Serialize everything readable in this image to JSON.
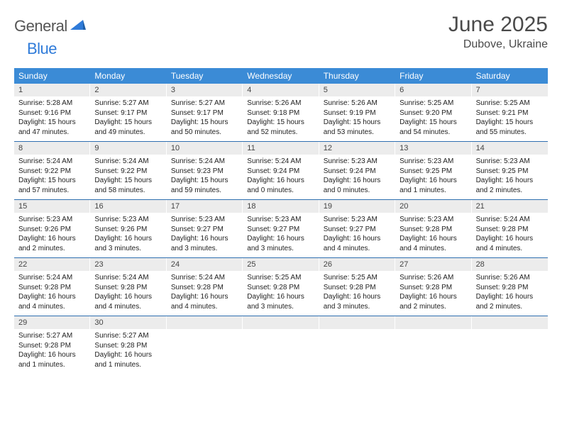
{
  "brand": {
    "word1": "General",
    "word2": "Blue"
  },
  "title": "June 2025",
  "location": "Dubove, Ukraine",
  "colors": {
    "header_bg": "#3b8bd6",
    "week_border": "#2f6fb0",
    "daynum_bg": "#ececec",
    "brand_blue": "#2f7bd9",
    "text": "#333333"
  },
  "weekdays": [
    "Sunday",
    "Monday",
    "Tuesday",
    "Wednesday",
    "Thursday",
    "Friday",
    "Saturday"
  ],
  "weeks": [
    [
      {
        "n": "1",
        "sunrise": "5:28 AM",
        "sunset": "9:16 PM",
        "dl_h": "15",
        "dl_m": "47"
      },
      {
        "n": "2",
        "sunrise": "5:27 AM",
        "sunset": "9:17 PM",
        "dl_h": "15",
        "dl_m": "49"
      },
      {
        "n": "3",
        "sunrise": "5:27 AM",
        "sunset": "9:17 PM",
        "dl_h": "15",
        "dl_m": "50"
      },
      {
        "n": "4",
        "sunrise": "5:26 AM",
        "sunset": "9:18 PM",
        "dl_h": "15",
        "dl_m": "52"
      },
      {
        "n": "5",
        "sunrise": "5:26 AM",
        "sunset": "9:19 PM",
        "dl_h": "15",
        "dl_m": "53"
      },
      {
        "n": "6",
        "sunrise": "5:25 AM",
        "sunset": "9:20 PM",
        "dl_h": "15",
        "dl_m": "54"
      },
      {
        "n": "7",
        "sunrise": "5:25 AM",
        "sunset": "9:21 PM",
        "dl_h": "15",
        "dl_m": "55"
      }
    ],
    [
      {
        "n": "8",
        "sunrise": "5:24 AM",
        "sunset": "9:22 PM",
        "dl_h": "15",
        "dl_m": "57"
      },
      {
        "n": "9",
        "sunrise": "5:24 AM",
        "sunset": "9:22 PM",
        "dl_h": "15",
        "dl_m": "58"
      },
      {
        "n": "10",
        "sunrise": "5:24 AM",
        "sunset": "9:23 PM",
        "dl_h": "15",
        "dl_m": "59"
      },
      {
        "n": "11",
        "sunrise": "5:24 AM",
        "sunset": "9:24 PM",
        "dl_h": "16",
        "dl_m": "0"
      },
      {
        "n": "12",
        "sunrise": "5:23 AM",
        "sunset": "9:24 PM",
        "dl_h": "16",
        "dl_m": "0"
      },
      {
        "n": "13",
        "sunrise": "5:23 AM",
        "sunset": "9:25 PM",
        "dl_h": "16",
        "dl_m": "1"
      },
      {
        "n": "14",
        "sunrise": "5:23 AM",
        "sunset": "9:25 PM",
        "dl_h": "16",
        "dl_m": "2"
      }
    ],
    [
      {
        "n": "15",
        "sunrise": "5:23 AM",
        "sunset": "9:26 PM",
        "dl_h": "16",
        "dl_m": "2"
      },
      {
        "n": "16",
        "sunrise": "5:23 AM",
        "sunset": "9:26 PM",
        "dl_h": "16",
        "dl_m": "3"
      },
      {
        "n": "17",
        "sunrise": "5:23 AM",
        "sunset": "9:27 PM",
        "dl_h": "16",
        "dl_m": "3"
      },
      {
        "n": "18",
        "sunrise": "5:23 AM",
        "sunset": "9:27 PM",
        "dl_h": "16",
        "dl_m": "3"
      },
      {
        "n": "19",
        "sunrise": "5:23 AM",
        "sunset": "9:27 PM",
        "dl_h": "16",
        "dl_m": "4"
      },
      {
        "n": "20",
        "sunrise": "5:23 AM",
        "sunset": "9:28 PM",
        "dl_h": "16",
        "dl_m": "4"
      },
      {
        "n": "21",
        "sunrise": "5:24 AM",
        "sunset": "9:28 PM",
        "dl_h": "16",
        "dl_m": "4"
      }
    ],
    [
      {
        "n": "22",
        "sunrise": "5:24 AM",
        "sunset": "9:28 PM",
        "dl_h": "16",
        "dl_m": "4"
      },
      {
        "n": "23",
        "sunrise": "5:24 AM",
        "sunset": "9:28 PM",
        "dl_h": "16",
        "dl_m": "4"
      },
      {
        "n": "24",
        "sunrise": "5:24 AM",
        "sunset": "9:28 PM",
        "dl_h": "16",
        "dl_m": "4"
      },
      {
        "n": "25",
        "sunrise": "5:25 AM",
        "sunset": "9:28 PM",
        "dl_h": "16",
        "dl_m": "3"
      },
      {
        "n": "26",
        "sunrise": "5:25 AM",
        "sunset": "9:28 PM",
        "dl_h": "16",
        "dl_m": "3"
      },
      {
        "n": "27",
        "sunrise": "5:26 AM",
        "sunset": "9:28 PM",
        "dl_h": "16",
        "dl_m": "2"
      },
      {
        "n": "28",
        "sunrise": "5:26 AM",
        "sunset": "9:28 PM",
        "dl_h": "16",
        "dl_m": "2"
      }
    ],
    [
      {
        "n": "29",
        "sunrise": "5:27 AM",
        "sunset": "9:28 PM",
        "dl_h": "16",
        "dl_m": "1"
      },
      {
        "n": "30",
        "sunrise": "5:27 AM",
        "sunset": "9:28 PM",
        "dl_h": "16",
        "dl_m": "1"
      },
      null,
      null,
      null,
      null,
      null
    ]
  ],
  "labels": {
    "sunrise": "Sunrise:",
    "sunset": "Sunset:",
    "daylight_pre": "Daylight:",
    "hours_word": "hours",
    "and_word": "and",
    "minutes_word": "minutes."
  }
}
